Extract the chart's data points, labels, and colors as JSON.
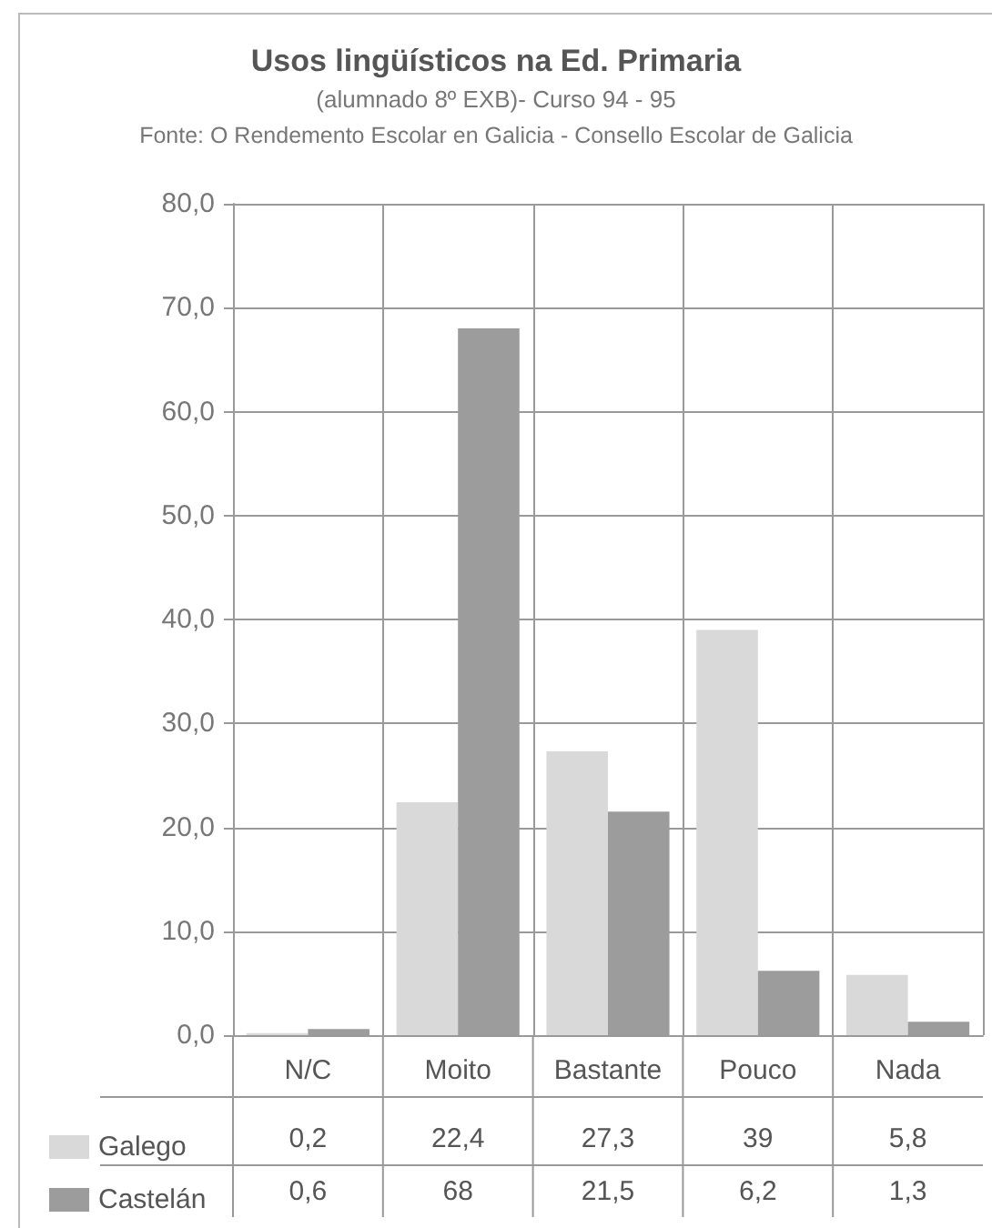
{
  "chart_data": {
    "type": "bar",
    "title": "Usos lingüísticos na Ed. Primaria",
    "subtitle": "(alumnado 8º EXB)- Curso 94 - 95",
    "annotations": [
      "Fonte: O Rendemento Escolar en Galicia - Consello Escolar de Galicia"
    ],
    "categories": [
      "N/C",
      "Moito",
      "Bastante",
      "Pouco",
      "Nada"
    ],
    "series": [
      {
        "name": "Galego",
        "color": "#d9d9d9",
        "values": [
          0.2,
          22.4,
          27.3,
          39,
          5.8
        ],
        "value_labels": [
          "0,2",
          "22,4",
          "27,3",
          "39",
          "5,8"
        ]
      },
      {
        "name": "Castelán",
        "color": "#9c9c9c",
        "values": [
          0.6,
          68,
          21.5,
          6.2,
          1.3
        ],
        "value_labels": [
          "0,6",
          "68",
          "21,5",
          "6,2",
          "1,3"
        ]
      }
    ],
    "ylim": [
      0,
      80
    ],
    "yticks": [
      {
        "value": 0,
        "label": "0,0"
      },
      {
        "value": 10,
        "label": "10,0"
      },
      {
        "value": 20,
        "label": "20,0"
      },
      {
        "value": 30,
        "label": "30,0"
      },
      {
        "value": 40,
        "label": "40,0"
      },
      {
        "value": 50,
        "label": "50,0"
      },
      {
        "value": 60,
        "label": "60,0"
      },
      {
        "value": 70,
        "label": "70,0"
      },
      {
        "value": 80,
        "label": "80,0"
      }
    ],
    "grid": true,
    "legend": "bottom left"
  }
}
